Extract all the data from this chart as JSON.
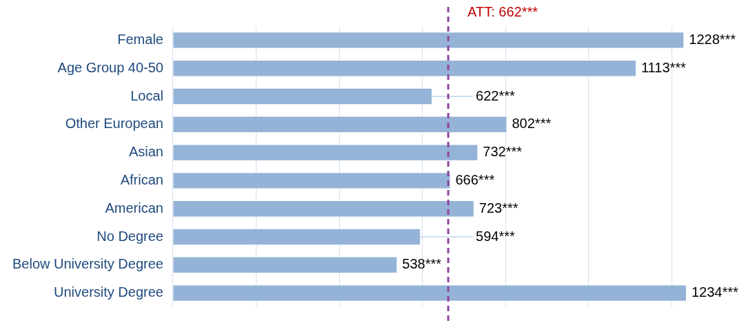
{
  "chart_data": {
    "type": "bar",
    "orientation": "horizontal",
    "categories": [
      "Female",
      "Age Group 40-50",
      "Local",
      "Other European",
      "Asian",
      "African",
      "American",
      "No Degree",
      "Below University Degree",
      "University Degree"
    ],
    "values": [
      1228,
      1113,
      622,
      802,
      732,
      666,
      723,
      594,
      538,
      1234
    ],
    "color": "#95b3d7",
    "value_labels": [
      "1228***",
      "1113***",
      "622***",
      "802***",
      "732***",
      "666***",
      "723***",
      "594***",
      "538***",
      "1234***"
    ],
    "tick_labels": "y",
    "grid": "x",
    "legend": false,
    "ref_lines": [
      {
        "axis": "x",
        "value": 662,
        "label": "ATT: 662***",
        "color": "#8e44a0",
        "line_style": "dashed"
      }
    ]
  }
}
